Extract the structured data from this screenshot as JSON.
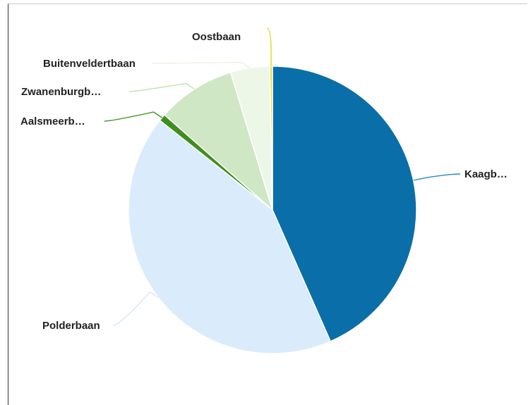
{
  "chart_data": {
    "type": "pie",
    "title": "",
    "slices": [
      {
        "label": "Kaagb…",
        "value": 43.4,
        "color": "#0a6ea8",
        "line_color": "#2a8cc0"
      },
      {
        "label": "Polderbaan",
        "value": 42.3,
        "color": "#daebfb",
        "line_color": "#d5e8f7"
      },
      {
        "label": "Aalsmeerb…",
        "value": 0.8,
        "color": "#3f8f1f",
        "line_color": "#3f8f1f"
      },
      {
        "label": "Zwanenburgb…",
        "value": 8.8,
        "color": "#cfe7c4",
        "line_color": "#bfe0b2"
      },
      {
        "label": "Buitenveldertbaan",
        "value": 4.4,
        "color": "#ecf7e8",
        "line_color": "#e8f4e3"
      },
      {
        "label": "Oostbaan",
        "value": 0.3,
        "color": "#e8e23c",
        "line_color": "#e0d820"
      }
    ]
  }
}
